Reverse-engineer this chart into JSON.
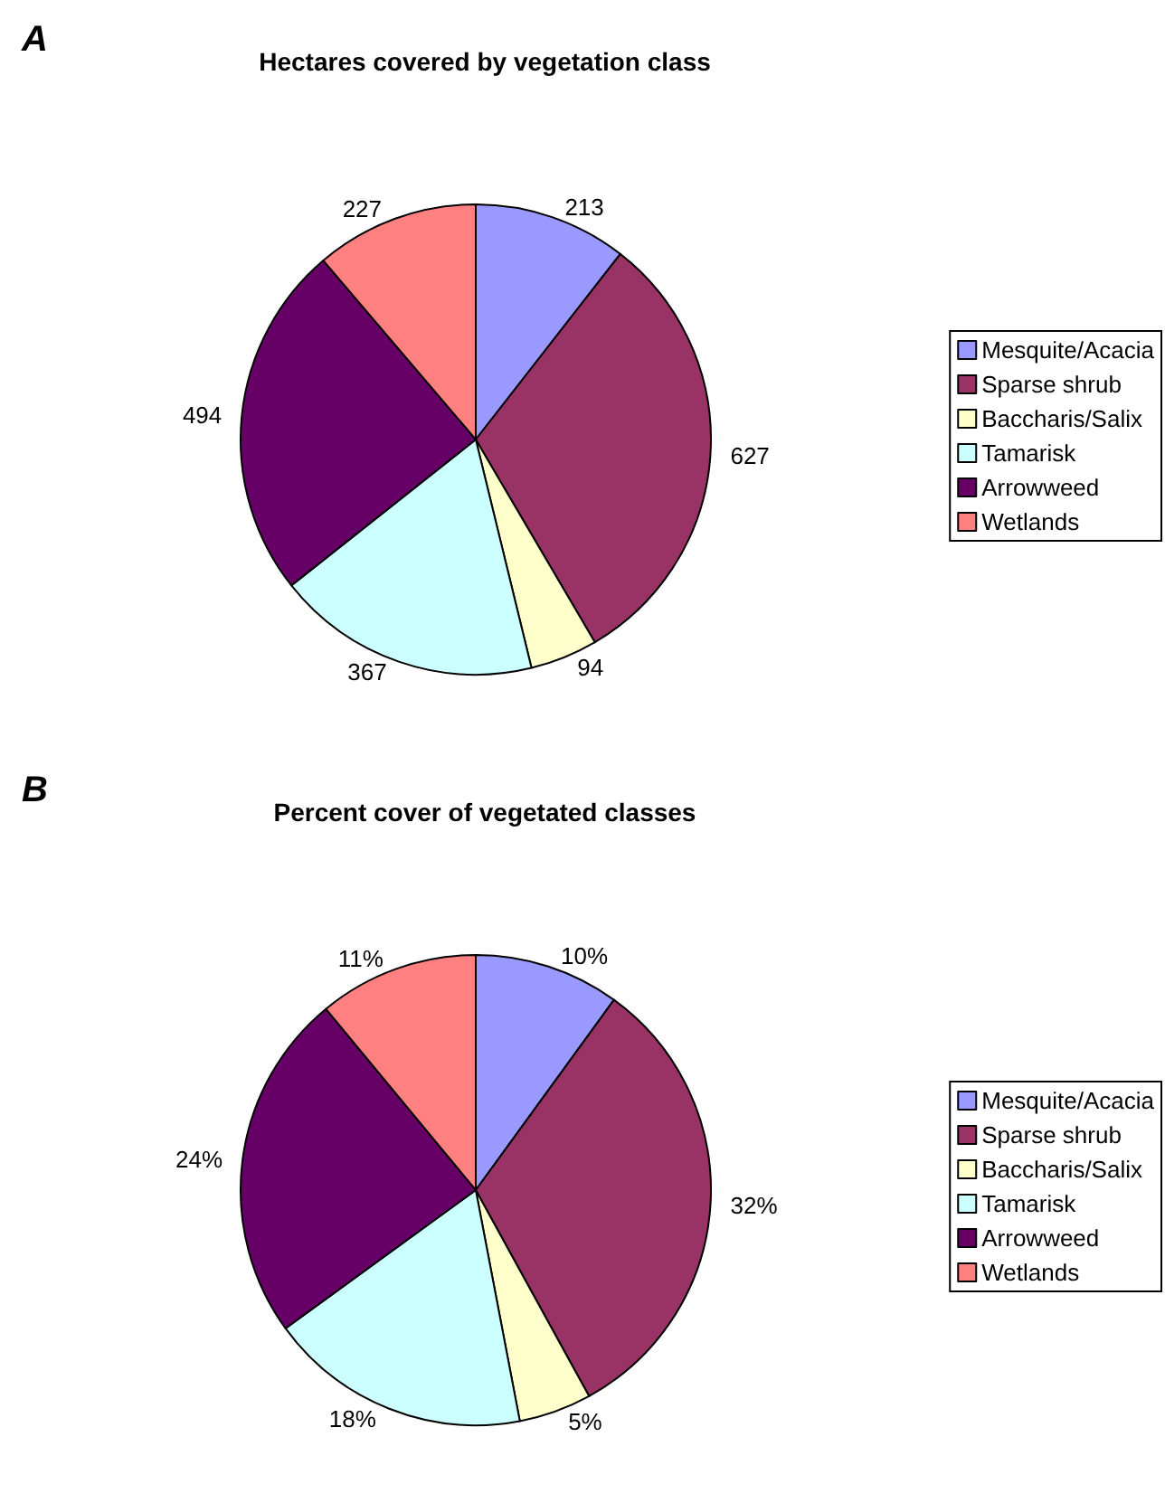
{
  "chart_data": [
    {
      "type": "pie",
      "title": "Hectares covered by vegetation class",
      "annotations": [
        "A"
      ],
      "categories": [
        "Mesquite/Acacia",
        "Sparse shrub",
        "Baccharis/Salix",
        "Tamarisk",
        "Arrowweed",
        "Wetlands"
      ],
      "values": [
        213,
        627,
        94,
        367,
        494,
        227
      ],
      "colors": [
        "#9999ff",
        "#993366",
        "#ffffcc",
        "#ccffff",
        "#660066",
        "#ff8080"
      ],
      "data_labels": true,
      "legend": "right"
    },
    {
      "type": "pie",
      "title": "Percent cover of vegetated classes",
      "annotations": [
        "B"
      ],
      "categories": [
        "Mesquite/Acacia",
        "Sparse shrub",
        "Baccharis/Salix",
        "Tamarisk",
        "Arrowweed",
        "Wetlands"
      ],
      "values": [
        10,
        32,
        5,
        18,
        24,
        11
      ],
      "value_labels": [
        "10%",
        "32%",
        "5%",
        "18%",
        "24%",
        "11%"
      ],
      "colors": [
        "#9999ff",
        "#993366",
        "#ffffcc",
        "#ccffff",
        "#660066",
        "#ff8080"
      ],
      "legend": "right"
    }
  ]
}
